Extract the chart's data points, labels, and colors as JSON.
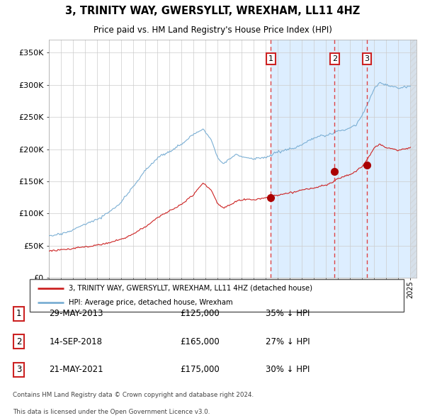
{
  "title": "3, TRINITY WAY, GWERSYLLT, WREXHAM, LL11 4HZ",
  "subtitle": "Price paid vs. HM Land Registry's House Price Index (HPI)",
  "xlim_start": 1995.0,
  "xlim_end": 2025.5,
  "ylim": [
    0,
    370000
  ],
  "yticks": [
    0,
    50000,
    100000,
    150000,
    200000,
    250000,
    300000,
    350000
  ],
  "ytick_labels": [
    "£0",
    "£50K",
    "£100K",
    "£150K",
    "£200K",
    "£250K",
    "£300K",
    "£350K"
  ],
  "hpi_color": "#7bafd4",
  "price_color": "#cc2222",
  "sale_marker_color": "#aa0000",
  "vline_color": "#dd4444",
  "bg_highlight_color": "#ddeeff",
  "sale1_x": 2013.41,
  "sale1_y": 125000,
  "sale2_x": 2018.71,
  "sale2_y": 165000,
  "sale3_x": 2021.38,
  "sale3_y": 175000,
  "legend_property": "3, TRINITY WAY, GWERSYLLT, WREXHAM, LL11 4HZ (detached house)",
  "legend_hpi": "HPI: Average price, detached house, Wrexham",
  "table_entries": [
    {
      "num": "1",
      "date": "29-MAY-2013",
      "price": "£125,000",
      "hpi": "35% ↓ HPI"
    },
    {
      "num": "2",
      "date": "14-SEP-2018",
      "price": "£165,000",
      "hpi": "27% ↓ HPI"
    },
    {
      "num": "3",
      "date": "21-MAY-2021",
      "price": "£175,000",
      "hpi": "30% ↓ HPI"
    }
  ],
  "footnote1": "Contains HM Land Registry data © Crown copyright and database right 2024.",
  "footnote2": "This data is licensed under the Open Government Licence v3.0.",
  "hpi_seed_points": [
    [
      1995.0,
      65000
    ],
    [
      1996.0,
      68000
    ],
    [
      1997.0,
      74000
    ],
    [
      1998.0,
      82000
    ],
    [
      1999.0,
      90000
    ],
    [
      2000.0,
      100000
    ],
    [
      2001.0,
      115000
    ],
    [
      2002.0,
      140000
    ],
    [
      2003.0,
      165000
    ],
    [
      2004.0,
      185000
    ],
    [
      2005.0,
      195000
    ],
    [
      2006.0,
      205000
    ],
    [
      2007.0,
      220000
    ],
    [
      2007.8,
      228000
    ],
    [
      2008.5,
      210000
    ],
    [
      2009.0,
      185000
    ],
    [
      2009.5,
      175000
    ],
    [
      2010.0,
      182000
    ],
    [
      2010.5,
      188000
    ],
    [
      2011.0,
      185000
    ],
    [
      2011.5,
      183000
    ],
    [
      2012.0,
      182000
    ],
    [
      2012.5,
      183000
    ],
    [
      2013.0,
      185000
    ],
    [
      2013.5,
      188000
    ],
    [
      2014.0,
      193000
    ],
    [
      2014.5,
      195000
    ],
    [
      2015.0,
      198000
    ],
    [
      2015.5,
      200000
    ],
    [
      2016.0,
      205000
    ],
    [
      2016.5,
      210000
    ],
    [
      2017.0,
      215000
    ],
    [
      2017.5,
      218000
    ],
    [
      2018.0,
      220000
    ],
    [
      2018.5,
      222000
    ],
    [
      2019.0,
      225000
    ],
    [
      2019.5,
      228000
    ],
    [
      2020.0,
      230000
    ],
    [
      2020.5,
      235000
    ],
    [
      2021.0,
      250000
    ],
    [
      2021.5,
      268000
    ],
    [
      2022.0,
      290000
    ],
    [
      2022.5,
      300000
    ],
    [
      2023.0,
      295000
    ],
    [
      2023.5,
      292000
    ],
    [
      2024.0,
      290000
    ],
    [
      2024.5,
      292000
    ],
    [
      2025.0,
      293000
    ]
  ],
  "price_seed_points": [
    [
      1995.0,
      42000
    ],
    [
      1996.0,
      44000
    ],
    [
      1997.0,
      46000
    ],
    [
      1998.0,
      49000
    ],
    [
      1999.0,
      51000
    ],
    [
      2000.0,
      55000
    ],
    [
      2001.0,
      60000
    ],
    [
      2002.0,
      68000
    ],
    [
      2003.0,
      80000
    ],
    [
      2004.0,
      95000
    ],
    [
      2005.0,
      105000
    ],
    [
      2006.0,
      115000
    ],
    [
      2007.0,
      130000
    ],
    [
      2007.8,
      148000
    ],
    [
      2008.5,
      135000
    ],
    [
      2009.0,
      115000
    ],
    [
      2009.5,
      108000
    ],
    [
      2010.0,
      112000
    ],
    [
      2010.5,
      118000
    ],
    [
      2011.0,
      120000
    ],
    [
      2011.5,
      122000
    ],
    [
      2012.0,
      120000
    ],
    [
      2012.5,
      122000
    ],
    [
      2013.0,
      124000
    ],
    [
      2013.5,
      126000
    ],
    [
      2014.0,
      128000
    ],
    [
      2014.5,
      130000
    ],
    [
      2015.0,
      132000
    ],
    [
      2015.5,
      134000
    ],
    [
      2016.0,
      136000
    ],
    [
      2016.5,
      138000
    ],
    [
      2017.0,
      140000
    ],
    [
      2017.5,
      142000
    ],
    [
      2018.0,
      144000
    ],
    [
      2018.5,
      148000
    ],
    [
      2019.0,
      155000
    ],
    [
      2019.5,
      158000
    ],
    [
      2020.0,
      160000
    ],
    [
      2020.5,
      165000
    ],
    [
      2021.0,
      172000
    ],
    [
      2021.5,
      185000
    ],
    [
      2022.0,
      200000
    ],
    [
      2022.5,
      205000
    ],
    [
      2023.0,
      200000
    ],
    [
      2023.5,
      198000
    ],
    [
      2024.0,
      196000
    ],
    [
      2024.5,
      198000
    ],
    [
      2025.0,
      200000
    ]
  ]
}
